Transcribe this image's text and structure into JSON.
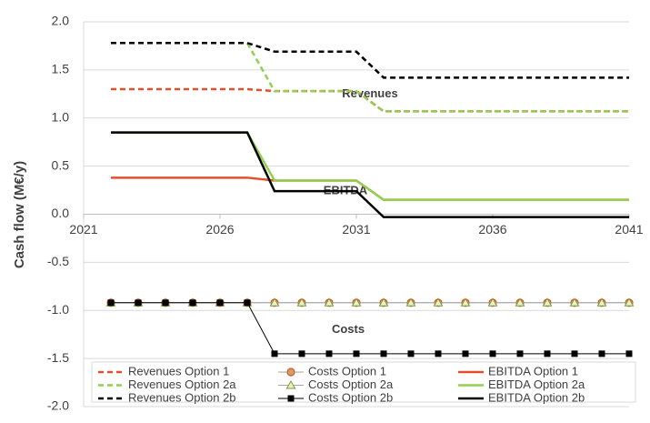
{
  "chart_data": {
    "type": "line",
    "ylabel": "Cash flow (M€/y)",
    "x": [
      2022,
      2023,
      2024,
      2025,
      2026,
      2027,
      2028,
      2029,
      2030,
      2031,
      2032,
      2033,
      2034,
      2035,
      2036,
      2037,
      2038,
      2039,
      2040,
      2041
    ],
    "xlim": [
      2021,
      2041
    ],
    "xticks": [
      2021,
      2026,
      2031,
      2036,
      2041
    ],
    "ylim": [
      -2,
      2
    ],
    "yticks": [
      {
        "value": 2,
        "label": "2.0"
      },
      1.5,
      {
        "value": 1,
        "label": "1.0"
      },
      0.5,
      {
        "value": 0,
        "label": "0.0"
      },
      -0.5,
      {
        "value": -1,
        "label": "-1.0"
      },
      -1.5,
      {
        "value": -2,
        "label": "-2.0"
      }
    ],
    "grid": true,
    "annotations": [
      "Revenues",
      "EBITDA",
      "Costs"
    ],
    "series": [
      {
        "name": "Revenues Option 1",
        "color": "#e0502a",
        "dash": true,
        "values": [
          1.3,
          1.3,
          1.3,
          1.3,
          1.3,
          1.3,
          1.28,
          1.28,
          1.28,
          1.28,
          1.07,
          1.07,
          1.07,
          1.07,
          1.07,
          1.07,
          1.07,
          1.07,
          1.07,
          1.07
        ]
      },
      {
        "name": "Costs Option 1",
        "color": "#e0502a",
        "marker": "circle",
        "values": [
          -0.92,
          -0.92,
          -0.92,
          -0.92,
          -0.92,
          -0.92,
          -0.92,
          -0.92,
          -0.92,
          -0.92,
          -0.92,
          -0.92,
          -0.92,
          -0.92,
          -0.92,
          -0.92,
          -0.92,
          -0.92,
          -0.92,
          -0.92
        ]
      },
      {
        "name": "EBITDA Option 1",
        "color": "#e0502a",
        "values": [
          0.38,
          0.38,
          0.38,
          0.38,
          0.38,
          0.38,
          0.35,
          0.35,
          0.35,
          0.35,
          0.15,
          0.15,
          0.15,
          0.15,
          0.15,
          0.15,
          0.15,
          0.15,
          0.15,
          0.15
        ]
      },
      {
        "name": "Revenues Option 2a",
        "color": "#92d050",
        "dash": true,
        "values": [
          1.78,
          1.78,
          1.78,
          1.78,
          1.78,
          1.78,
          1.28,
          1.28,
          1.28,
          1.28,
          1.07,
          1.07,
          1.07,
          1.07,
          1.07,
          1.07,
          1.07,
          1.07,
          1.07,
          1.07
        ]
      },
      {
        "name": "Costs Option 2a",
        "color": "#92d050",
        "marker": "triangle",
        "values": [
          -0.92,
          -0.92,
          -0.92,
          -0.92,
          -0.92,
          -0.92,
          -0.92,
          -0.92,
          -0.92,
          -0.92,
          -0.92,
          -0.92,
          -0.92,
          -0.92,
          -0.92,
          -0.92,
          -0.92,
          -0.92,
          -0.92,
          -0.92
        ]
      },
      {
        "name": "EBITDA Option 2a",
        "color": "#92d050",
        "values": [
          0.85,
          0.85,
          0.85,
          0.85,
          0.85,
          0.85,
          0.35,
          0.35,
          0.35,
          0.35,
          0.15,
          0.15,
          0.15,
          0.15,
          0.15,
          0.15,
          0.15,
          0.15,
          0.15,
          0.15
        ]
      },
      {
        "name": "Revenues Option 2b",
        "color": "#000000",
        "dash": true,
        "values": [
          1.78,
          1.78,
          1.78,
          1.78,
          1.78,
          1.78,
          1.69,
          1.69,
          1.69,
          1.69,
          1.42,
          1.42,
          1.42,
          1.42,
          1.42,
          1.42,
          1.42,
          1.42,
          1.42,
          1.42
        ]
      },
      {
        "name": "Costs Option 2b",
        "color": "#000000",
        "marker": "square",
        "values": [
          -0.92,
          -0.92,
          -0.92,
          -0.92,
          -0.92,
          -0.92,
          -1.45,
          -1.45,
          -1.45,
          -1.45,
          -1.45,
          -1.45,
          -1.45,
          -1.45,
          -1.45,
          -1.45,
          -1.45,
          -1.45,
          -1.45,
          -1.45
        ]
      },
      {
        "name": "EBITDA Option 2b",
        "color": "#000000",
        "values": [
          0.85,
          0.85,
          0.85,
          0.85,
          0.85,
          0.85,
          0.24,
          0.24,
          0.24,
          0.24,
          -0.03,
          -0.03,
          -0.03,
          -0.03,
          -0.03,
          -0.03,
          -0.03,
          -0.03,
          -0.03,
          -0.03
        ]
      }
    ]
  }
}
